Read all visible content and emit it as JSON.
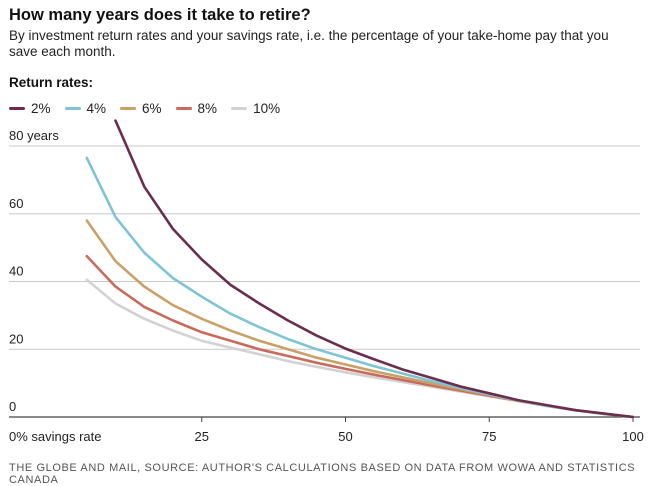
{
  "title": "How many years does it take to retire?",
  "subtitle": "By investment return rates and your savings rate, i.e. the percentage of your take-home pay that you save each month.",
  "legend_title": "Return rates:",
  "footer": "THE GLOBE AND MAIL, SOURCE: AUTHOR'S CALCULATIONS BASED ON DATA FROM WOWA AND STATISTICS CANADA",
  "colors": {
    "grid": "#c8c8c8",
    "axis": "#444444",
    "tick_label": "#222222"
  },
  "chart_data": {
    "type": "line",
    "title": "How many years does it take to retire?",
    "xlabel": "",
    "ylabel": "",
    "xlim": [
      0,
      100
    ],
    "ylim": [
      0,
      80
    ],
    "x_ticks": [
      {
        "value": 0,
        "label": "0% savings rate"
      },
      {
        "value": 25,
        "label": "25"
      },
      {
        "value": 50,
        "label": "50"
      },
      {
        "value": 75,
        "label": "75"
      },
      {
        "value": 100,
        "label": "100"
      }
    ],
    "y_ticks": [
      {
        "value": 0,
        "label": "0"
      },
      {
        "value": 20,
        "label": "20"
      },
      {
        "value": 40,
        "label": "40"
      },
      {
        "value": 60,
        "label": "60"
      },
      {
        "value": 80,
        "label": "80 years"
      }
    ],
    "grid": true,
    "legend_position": "top-left",
    "x": [
      5,
      10,
      15,
      20,
      25,
      30,
      35,
      40,
      45,
      50,
      55,
      60,
      65,
      70,
      75,
      80,
      85,
      90,
      95,
      100
    ],
    "series": [
      {
        "name": "2%",
        "color": "#6b2d4e",
        "x_start_index": 1,
        "values": [
          null,
          87.5,
          68,
          55.5,
          46.5,
          39,
          33.5,
          28.5,
          24,
          20.2,
          17,
          14,
          11.5,
          9,
          7,
          5,
          3.5,
          2,
          1,
          0
        ]
      },
      {
        "name": "4%",
        "color": "#7fc4d6",
        "values": [
          76.5,
          59,
          48.5,
          41,
          35.5,
          30.5,
          26.5,
          23,
          20,
          17.5,
          15,
          12.8,
          10.6,
          8.6,
          6.7,
          4.9,
          3.3,
          2,
          0.9,
          0
        ]
      },
      {
        "name": "6%",
        "color": "#c9a066",
        "values": [
          58,
          46,
          38.5,
          33,
          29,
          25.5,
          22.5,
          20,
          17.5,
          15.5,
          13.5,
          11.7,
          9.9,
          8.2,
          6.5,
          4.8,
          3.3,
          2,
          0.9,
          0
        ]
      },
      {
        "name": "8%",
        "color": "#c96a5c",
        "values": [
          47.5,
          38.5,
          32.5,
          28.5,
          25,
          22.5,
          20,
          18,
          16,
          14.2,
          12.5,
          10.9,
          9.3,
          7.8,
          6.3,
          4.8,
          3.3,
          2,
          0.9,
          0
        ]
      },
      {
        "name": "10%",
        "color": "#d2d2d2",
        "values": [
          40.5,
          33.5,
          29,
          25.5,
          22.5,
          20.5,
          18.5,
          16.5,
          14.8,
          13.2,
          11.7,
          10.3,
          8.9,
          7.5,
          6.1,
          4.7,
          3.3,
          2,
          0.9,
          0
        ]
      }
    ]
  }
}
